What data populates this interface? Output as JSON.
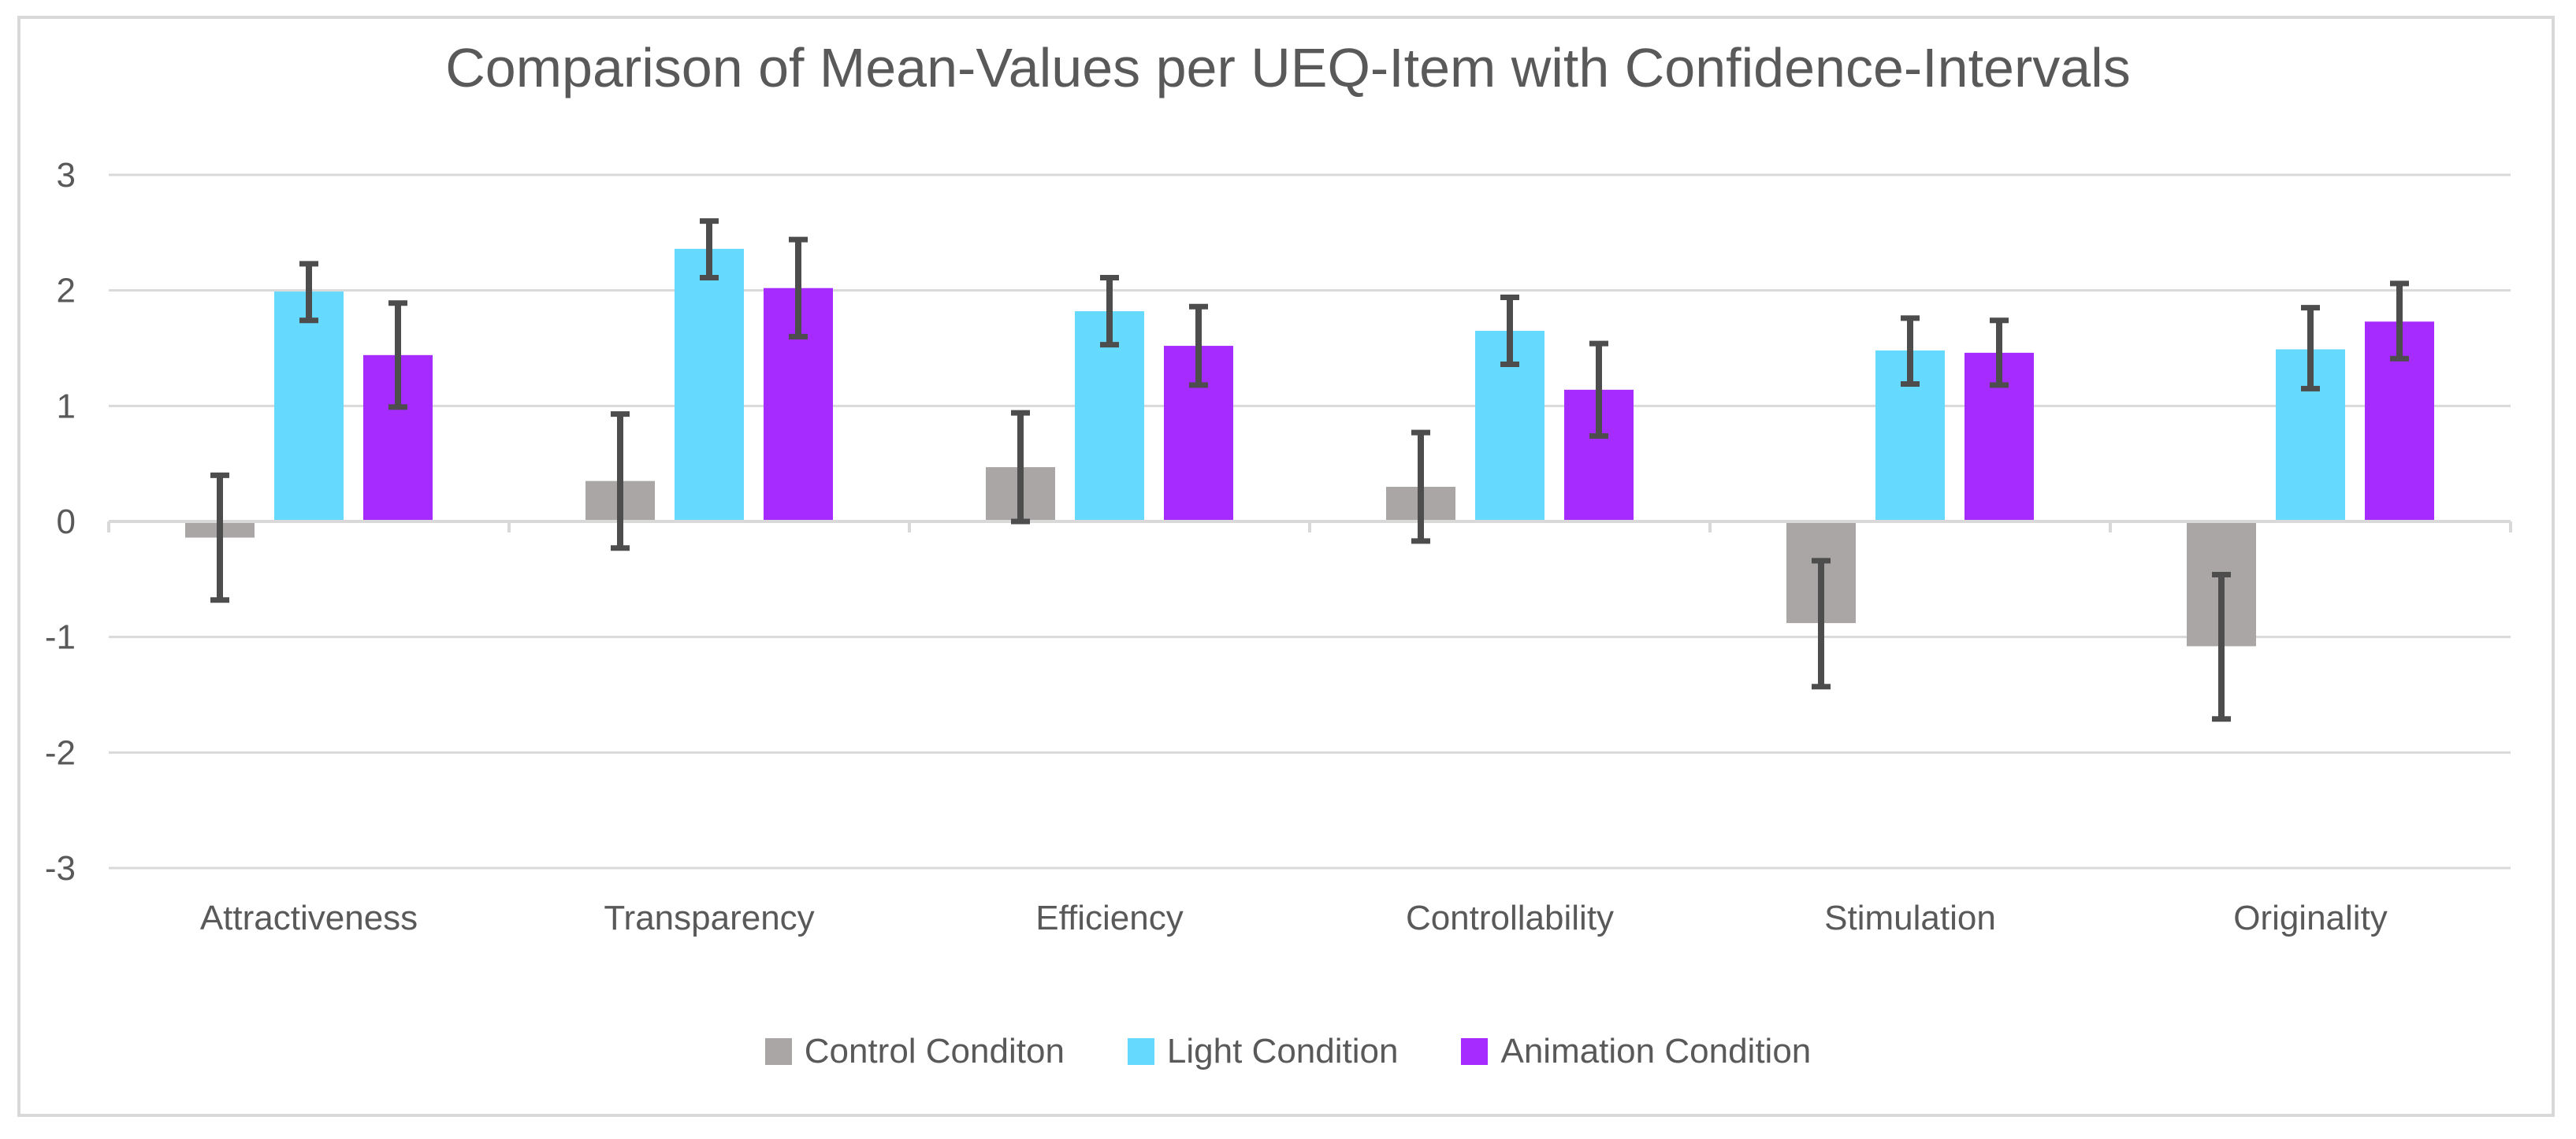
{
  "chart_data": {
    "type": "bar",
    "title": "Comparison of Mean-Values per UEQ-Item with Confidence-Intervals",
    "categories": [
      "Attractiveness",
      "Transparency",
      "Efficiency",
      "Controllability",
      "Stimulation",
      "Originality"
    ],
    "series": [
      {
        "name": "Control Conditon",
        "color": "#aaa6a6",
        "values": [
          -0.14,
          0.35,
          0.47,
          0.3,
          -0.88,
          -1.08
        ],
        "error_low": [
          -0.68,
          -0.23,
          0.0,
          -0.17,
          -1.43,
          -1.71
        ],
        "error_high": [
          0.4,
          0.93,
          0.94,
          0.77,
          -0.34,
          -0.46
        ]
      },
      {
        "name": "Light Condition",
        "color": "#66d9ff",
        "values": [
          1.99,
          2.36,
          1.82,
          1.65,
          1.48,
          1.49
        ],
        "error_low": [
          1.74,
          2.11,
          1.53,
          1.36,
          1.19,
          1.15
        ],
        "error_high": [
          2.23,
          2.6,
          2.11,
          1.94,
          1.76,
          1.85
        ]
      },
      {
        "name": "Animation Condition",
        "color": "#a62bff",
        "values": [
          1.44,
          2.02,
          1.52,
          1.14,
          1.46,
          1.73
        ],
        "error_low": [
          0.99,
          1.6,
          1.18,
          0.74,
          1.18,
          1.41
        ],
        "error_high": [
          1.89,
          2.44,
          1.86,
          1.54,
          1.74,
          2.06
        ]
      }
    ],
    "ylim": [
      -3,
      3
    ],
    "yticks": [
      "-3",
      "-2",
      "-1",
      "0",
      "1",
      "2",
      "3"
    ],
    "xlabel": "",
    "ylabel": "",
    "grid": true,
    "legend_position": "bottom-center"
  }
}
